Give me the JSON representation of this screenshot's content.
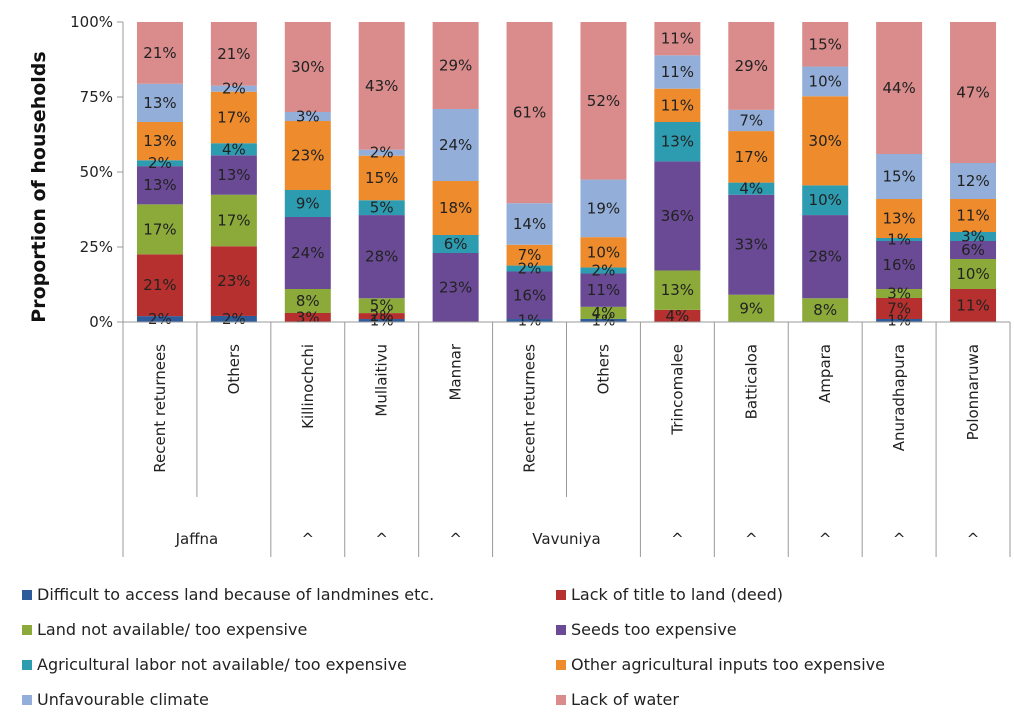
{
  "chart_data": {
    "type": "bar",
    "stacked": true,
    "stack_percent": true,
    "ylabel": "Proportion of households",
    "xlabel": "",
    "yticks": [
      "0%",
      "25%",
      "50%",
      "75%",
      "100%"
    ],
    "ylim": [
      0,
      100
    ],
    "categories": [
      {
        "label": "Recent returnees",
        "group": "Jaffna"
      },
      {
        "label": "Others",
        "group": "Jaffna"
      },
      {
        "label": "Killinochchi",
        "group": "^"
      },
      {
        "label": "Mullaitivu",
        "group": "^"
      },
      {
        "label": "Mannar",
        "group": "^"
      },
      {
        "label": "Recent returnees",
        "group": "Vavuniya"
      },
      {
        "label": "Others",
        "group": "Vavuniya"
      },
      {
        "label": "Trincomalee",
        "group": "^"
      },
      {
        "label": "Batticaloa",
        "group": "^"
      },
      {
        "label": "Ampara",
        "group": "^"
      },
      {
        "label": "Anuradhapura",
        "group": "^"
      },
      {
        "label": "Polonnaruwa",
        "group": "^"
      }
    ],
    "groups": [
      {
        "label": "Jaffna",
        "span": 2
      },
      {
        "label": "^",
        "span": 1
      },
      {
        "label": "^",
        "span": 1
      },
      {
        "label": "^",
        "span": 1
      },
      {
        "label": "Vavuniya",
        "span": 2
      },
      {
        "label": "^",
        "span": 1
      },
      {
        "label": "^",
        "span": 1
      },
      {
        "label": "^",
        "span": 1
      },
      {
        "label": "^",
        "span": 1
      },
      {
        "label": "^",
        "span": 1
      }
    ],
    "series": [
      {
        "name": "Difficult to access land because of landmines etc.",
        "color": "#2E5C9A",
        "values": [
          2,
          2,
          0,
          1,
          0,
          1,
          1,
          0,
          0,
          0,
          1,
          0
        ],
        "labels": [
          "2%",
          "2%",
          "",
          "1%",
          "",
          "1%",
          "1%",
          "",
          "",
          "",
          "1%",
          ""
        ]
      },
      {
        "name": "Lack of title to land (deed)",
        "color": "#B5302E",
        "values": [
          21,
          23,
          3,
          2,
          0,
          0,
          0,
          4,
          0,
          0,
          7,
          11
        ],
        "labels": [
          "21%",
          "23%",
          "3%",
          "2%",
          "",
          "",
          "",
          "4%",
          "",
          "",
          "7%",
          "11%"
        ]
      },
      {
        "name": "Land not available/ too expensive",
        "color": "#8BAA3A",
        "values": [
          17,
          17,
          8,
          5,
          0,
          0,
          4,
          13,
          9,
          8,
          3,
          10
        ],
        "labels": [
          "17%",
          "17%",
          "8%",
          "5%",
          "",
          "",
          "4%",
          "13%",
          "9%",
          "8%",
          "3%",
          "10%"
        ]
      },
      {
        "name": "Seeds too expensive",
        "color": "#6A4A94",
        "values": [
          13,
          13,
          24,
          28,
          23,
          16,
          11,
          36,
          33,
          28,
          16,
          6
        ],
        "labels": [
          "13%",
          "13%",
          "24%",
          "28%",
          "23%",
          "16%",
          "11%",
          "36%",
          "33%",
          "28%",
          "16%",
          "6%"
        ]
      },
      {
        "name": "Agricultural labor not available/ too expensive",
        "color": "#2D9BB0",
        "values": [
          2,
          4,
          9,
          5,
          6,
          2,
          2,
          13,
          4,
          10,
          1,
          3
        ],
        "labels": [
          "2%",
          "4%",
          "9%",
          "5%",
          "6%",
          "2%",
          "2%",
          "13%",
          "4%",
          "10%",
          "1%",
          "3%"
        ]
      },
      {
        "name": "Other agricultural inputs too expensive",
        "color": "#EE8B2C",
        "values": [
          13,
          17,
          23,
          15,
          18,
          7,
          10,
          11,
          17,
          30,
          13,
          11
        ],
        "labels": [
          "13%",
          "17%",
          "23%",
          "15%",
          "18%",
          "7%",
          "10%",
          "11%",
          "17%",
          "30%",
          "13%",
          "11%"
        ]
      },
      {
        "name": "Unfavourable climate",
        "color": "#93AFD9",
        "values": [
          13,
          2,
          3,
          2,
          24,
          14,
          19,
          11,
          7,
          10,
          15,
          12
        ],
        "labels": [
          "13%",
          "2%",
          "3%",
          "2%",
          "24%",
          "14%",
          "19%",
          "11%",
          "7%",
          "10%",
          "15%",
          "12%"
        ]
      },
      {
        "name": "Lack of water",
        "color": "#D98C8B",
        "values": [
          21,
          21,
          30,
          43,
          29,
          61,
          52,
          11,
          29,
          15,
          44,
          47
        ],
        "labels": [
          "21%",
          "21%",
          "30%",
          "43%",
          "29%",
          "61%",
          "52%",
          "11%",
          "29%",
          "15%",
          "44%",
          "47%"
        ]
      }
    ],
    "legend_position": "bottom",
    "grid": false
  }
}
